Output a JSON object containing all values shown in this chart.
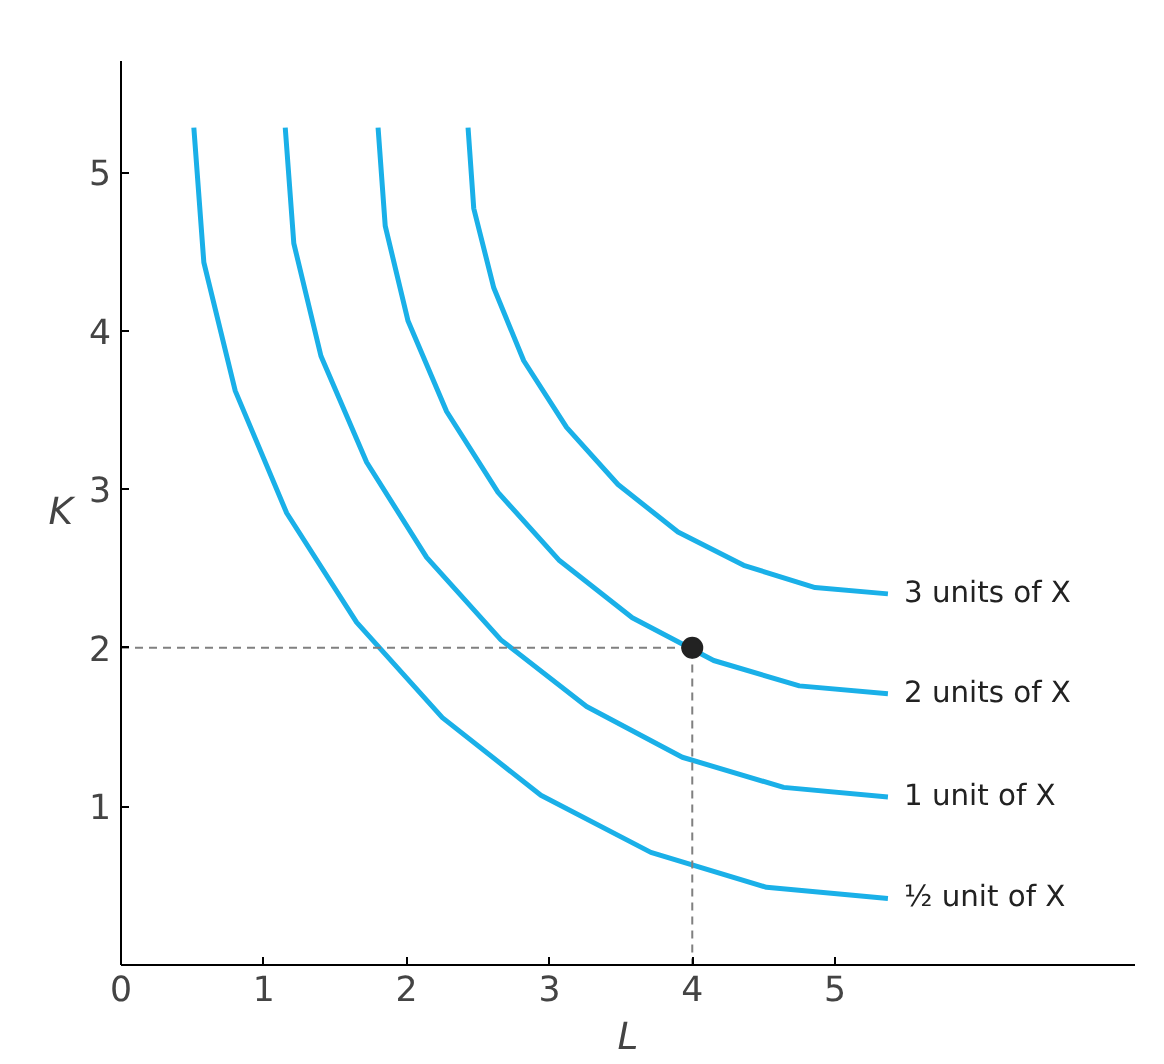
{
  "chart_data": {
    "type": "line",
    "xlabel": "L",
    "ylabel": "K",
    "xlim": [
      0,
      7.1
    ],
    "ylim": [
      0,
      5.7
    ],
    "xticks": [
      0,
      1,
      2,
      3,
      4,
      5
    ],
    "yticks": [
      {
        "value": 0,
        "label": null
      },
      1,
      2,
      3,
      4,
      5
    ],
    "grid": false,
    "marker": "none",
    "line_style": "solid",
    "series": [
      {
        "name": "½ unit of X",
        "color": "#1ab0e8",
        "x": [
          0.51,
          0.58,
          0.8,
          1.16,
          1.65,
          2.25,
          2.94,
          3.71,
          4.52,
          5.37
        ],
        "values": [
          5.28,
          4.43,
          3.62,
          2.85,
          2.16,
          1.56,
          1.07,
          0.71,
          0.49,
          0.42
        ]
      },
      {
        "name": "1 unit of X",
        "color": "#1ab0e8",
        "x": [
          1.15,
          1.21,
          1.4,
          1.72,
          2.14,
          2.66,
          3.26,
          3.93,
          4.64,
          5.37
        ],
        "values": [
          5.28,
          4.55,
          3.84,
          3.17,
          2.57,
          2.05,
          1.63,
          1.31,
          1.12,
          1.06
        ]
      },
      {
        "name": "2 units of X",
        "color": "#1ab0e8",
        "x": [
          1.8,
          1.85,
          2.01,
          2.28,
          2.64,
          3.07,
          3.58,
          4.15,
          4.75,
          5.37
        ],
        "values": [
          5.28,
          4.66,
          4.06,
          3.49,
          2.98,
          2.55,
          2.19,
          1.92,
          1.76,
          1.71
        ]
      },
      {
        "name": "3 units of X",
        "color": "#1ab0e8",
        "x": [
          2.43,
          2.47,
          2.61,
          2.82,
          3.12,
          3.48,
          3.9,
          4.36,
          4.86,
          5.37
        ],
        "values": [
          5.28,
          4.77,
          4.27,
          3.81,
          3.39,
          3.03,
          2.73,
          2.52,
          2.38,
          2.34
        ]
      },
      {
        "type": "line",
        "line_style": "dashed",
        "color": "#808080",
        "x": [
          0,
          4,
          4
        ],
        "values": [
          2,
          2,
          0
        ]
      },
      {
        "type": "scatter",
        "marker": "circle",
        "color": "#222222",
        "x": [
          4
        ],
        "values": [
          2
        ]
      }
    ]
  }
}
